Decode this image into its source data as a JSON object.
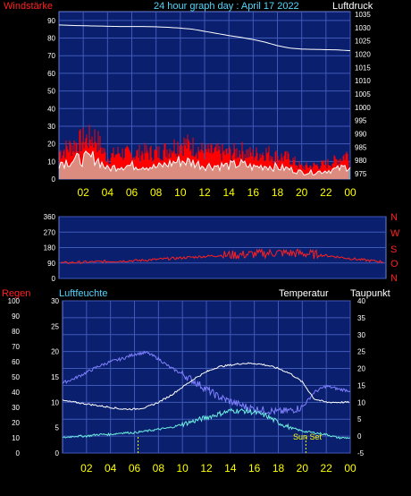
{
  "colors": {
    "background": "#000000",
    "plot_bg": "#0a1f6e",
    "grid": "#3f5ab8",
    "axis_text": "#ffffff",
    "time_labels": "#ffff00",
    "red_label": "#ff2020",
    "cyan_label": "#4fd7ff",
    "wind_gust": "#ff0000",
    "wind_avg": "#ffffff",
    "wind_fill": "#bfffe8",
    "pressure": "#ffffff",
    "direction": "#ff2020",
    "humidity": "#8080ff",
    "temperature": "#ffffff",
    "dewpoint": "#6cf0e0",
    "rain": "#4040ff",
    "sun_markers": "#ffff00"
  },
  "chart_data": [
    {
      "type": "line",
      "name": "wind-pressure",
      "title": "24 hour graph day : April 17 2022",
      "left_axis_label": "Windstärke",
      "right_axis_label": "Luftdruck",
      "x_ticks": [
        "02",
        "04",
        "06",
        "08",
        "10",
        "12",
        "14",
        "16",
        "18",
        "20",
        "22",
        "00"
      ],
      "y_left_ticks": [
        "0",
        "10",
        "20",
        "30",
        "40",
        "50",
        "60",
        "70",
        "80",
        "90"
      ],
      "y_left_range": [
        0,
        95
      ],
      "y_right_ticks": [
        "975",
        "980",
        "985",
        "990",
        "995",
        "1000",
        "1005",
        "1010",
        "1015",
        "1020",
        "1025",
        "1030",
        "1035"
      ],
      "y_right_range": [
        973,
        1036
      ],
      "grid": true,
      "series": [
        {
          "values_hours": [
            0,
            1,
            2,
            3,
            4,
            5,
            6,
            7,
            8,
            9,
            10,
            11,
            12,
            13,
            14,
            15,
            16,
            17,
            18,
            19,
            20,
            21,
            22,
            23,
            24
          ],
          "pressure": [
            1031,
            1030.8,
            1030.7,
            1030.6,
            1030.5,
            1030.4,
            1030.4,
            1030.4,
            1030.3,
            1030.1,
            1029.8,
            1029.4,
            1028.6,
            1027.8,
            1027.0,
            1026.3,
            1025.5,
            1024.5,
            1023.2,
            1022.3,
            1021.9,
            1021.8,
            1021.7,
            1021.6,
            1021.3
          ]
        },
        {
          "gust_envelope_hours": [
            0,
            1,
            2,
            3,
            4,
            5,
            6,
            7,
            8,
            9,
            10,
            11,
            12,
            13,
            14,
            15,
            16,
            17,
            18,
            19,
            20,
            21,
            22,
            23,
            24
          ],
          "gust": [
            18,
            22,
            26,
            28,
            14,
            18,
            16,
            18,
            17,
            20,
            24,
            22,
            18,
            18,
            17,
            19,
            16,
            18,
            15,
            14,
            8,
            9,
            10,
            13,
            18
          ],
          "avg": [
            10,
            11,
            12,
            13,
            6,
            8,
            8,
            8,
            7,
            9,
            11,
            10,
            8,
            8,
            8,
            9,
            7,
            8,
            7,
            6,
            4,
            4,
            5,
            6,
            8
          ]
        }
      ]
    },
    {
      "type": "line",
      "name": "wind-direction",
      "y_ticks": [
        "0",
        "90",
        "180",
        "270",
        "360"
      ],
      "y_range": [
        0,
        360
      ],
      "right_labels": [
        "N",
        "W",
        "S",
        "O",
        "N"
      ],
      "grid": true,
      "series": [
        {
          "hours": [
            0,
            2,
            4,
            6,
            8,
            10,
            12,
            14,
            16,
            18,
            20,
            22,
            24
          ],
          "direction": [
            90,
            95,
            100,
            105,
            115,
            125,
            135,
            140,
            150,
            145,
            130,
            110,
            95
          ]
        }
      ]
    },
    {
      "type": "line",
      "name": "temp-humidity-rain",
      "left_axis_label": "Regen",
      "left2_axis_label": "Luftfeuchte",
      "right_axis_label": "Temperatur",
      "right2_axis_label": "Taupunkt",
      "rain_ticks": [
        "0",
        "10",
        "20",
        "30",
        "40",
        "50",
        "60",
        "70",
        "80",
        "90",
        "100"
      ],
      "humidity_ticks": [
        "0",
        "5",
        "10",
        "15",
        "20",
        "25",
        "30"
      ],
      "temp_ticks": [
        "-5",
        "0",
        "5",
        "10",
        "15",
        "20",
        "25",
        "30",
        "35",
        "40"
      ],
      "x_ticks": [
        "02",
        "04",
        "06",
        "08",
        "10",
        "12",
        "14",
        "16",
        "18",
        "20",
        "22",
        "00"
      ],
      "annotation": "Sun Set",
      "sun_rise_hour": 6.3,
      "sun_set_hour": 20.3,
      "series": [
        {
          "name": "Luftfeuchte",
          "hours": [
            0,
            1,
            2,
            3,
            4,
            5,
            6,
            7,
            8,
            9,
            10,
            11,
            12,
            13,
            14,
            15,
            16,
            17,
            18,
            19,
            20,
            21,
            22,
            23,
            24
          ],
          "values": [
            46,
            49,
            53,
            57,
            60,
            62,
            65,
            66,
            62,
            56,
            52,
            47,
            42,
            37,
            34,
            31,
            29,
            28,
            27,
            28,
            30,
            40,
            44,
            42,
            41
          ]
        },
        {
          "name": "Temperatur",
          "hours": [
            0,
            1,
            2,
            3,
            4,
            5,
            6,
            7,
            8,
            9,
            10,
            11,
            12,
            13,
            14,
            15,
            16,
            17,
            18,
            19,
            20,
            21,
            22,
            23,
            24
          ],
          "values": [
            10.5,
            10,
            9.5,
            9,
            8.5,
            8,
            8,
            8.5,
            10,
            12,
            14.5,
            17,
            19,
            20.5,
            21,
            21.5,
            21.5,
            21,
            20,
            18.5,
            16,
            11,
            10,
            10,
            10
          ]
        },
        {
          "name": "Taupunkt",
          "hours": [
            0,
            1,
            2,
            3,
            4,
            5,
            6,
            7,
            8,
            9,
            10,
            11,
            12,
            13,
            14,
            15,
            16,
            17,
            18,
            19,
            20,
            21,
            22,
            23,
            24
          ],
          "values": [
            -0.5,
            0,
            0,
            0.5,
            0.5,
            1,
            1,
            1.5,
            2,
            2.5,
            3.5,
            4.5,
            5.5,
            6.5,
            7.5,
            7.5,
            7,
            6,
            4,
            2.5,
            1.5,
            1,
            0.5,
            -0.5,
            -0.5
          ]
        }
      ]
    }
  ]
}
